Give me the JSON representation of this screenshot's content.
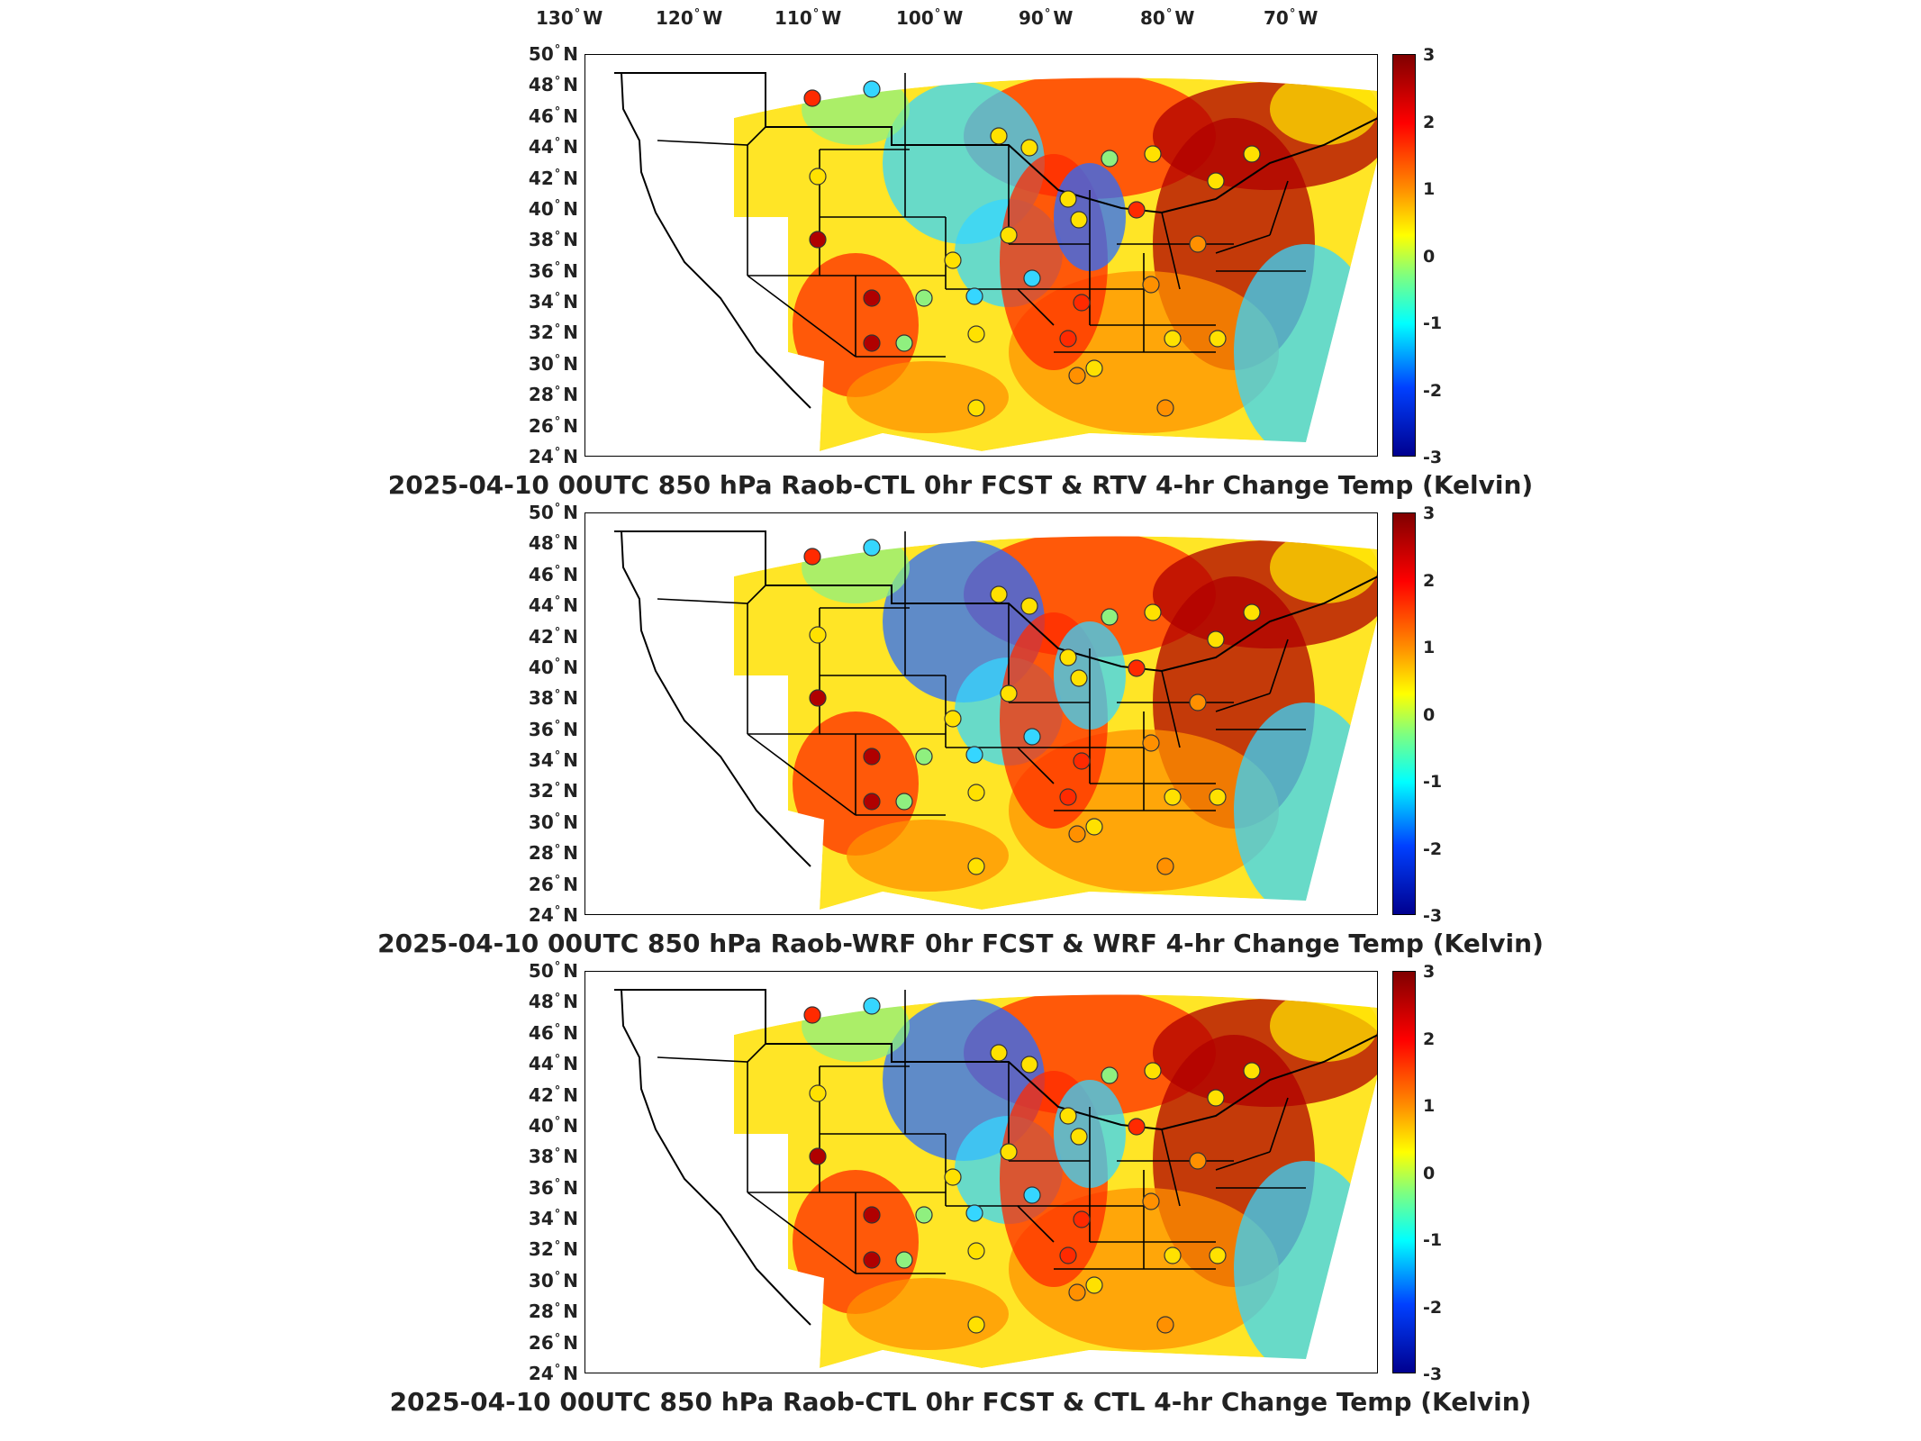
{
  "lon_labels": [
    {
      "deg": "130",
      "hemi": "W"
    },
    {
      "deg": "120",
      "hemi": "W"
    },
    {
      "deg": "110",
      "hemi": "W"
    },
    {
      "deg": "100",
      "hemi": "W"
    },
    {
      "deg": "90",
      "hemi": "W"
    },
    {
      "deg": "80",
      "hemi": "W"
    },
    {
      "deg": "70",
      "hemi": "W"
    }
  ],
  "lat_labels": [
    {
      "deg": "50",
      "hemi": "N"
    },
    {
      "deg": "48",
      "hemi": "N"
    },
    {
      "deg": "46",
      "hemi": "N"
    },
    {
      "deg": "44",
      "hemi": "N"
    },
    {
      "deg": "42",
      "hemi": "N"
    },
    {
      "deg": "40",
      "hemi": "N"
    },
    {
      "deg": "38",
      "hemi": "N"
    },
    {
      "deg": "36",
      "hemi": "N"
    },
    {
      "deg": "34",
      "hemi": "N"
    },
    {
      "deg": "32",
      "hemi": "N"
    },
    {
      "deg": "30",
      "hemi": "N"
    },
    {
      "deg": "28",
      "hemi": "N"
    },
    {
      "deg": "26",
      "hemi": "N"
    },
    {
      "deg": "24",
      "hemi": "N"
    }
  ],
  "colorbar": {
    "ticks": [
      "3",
      "2",
      "1",
      "0",
      "-1",
      "-2",
      "-3"
    ],
    "range": [
      -3,
      3
    ]
  },
  "panels": [
    {
      "title": "2025-04-10 00UTC 850 hPa Raob-CTL 0hr FCST & RTV 4-hr Change Temp (Kelvin)"
    },
    {
      "title": "2025-04-10 00UTC 850 hPa Raob-WRF 0hr FCST & WRF 4-hr Change Temp (Kelvin)"
    },
    {
      "title": "2025-04-10 00UTC 850 hPa Raob-CTL 0hr FCST & CTL 4-hr Change Temp (Kelvin)"
    }
  ],
  "colors": {
    "dark_red": "#b00000",
    "red": "#ff2a00",
    "orange": "#ff9000",
    "yellow": "#ffe100",
    "green": "#8ff07f",
    "cyan": "#35d6ff",
    "blue": "#2a6cff",
    "navy": "#0a1a9c"
  }
}
